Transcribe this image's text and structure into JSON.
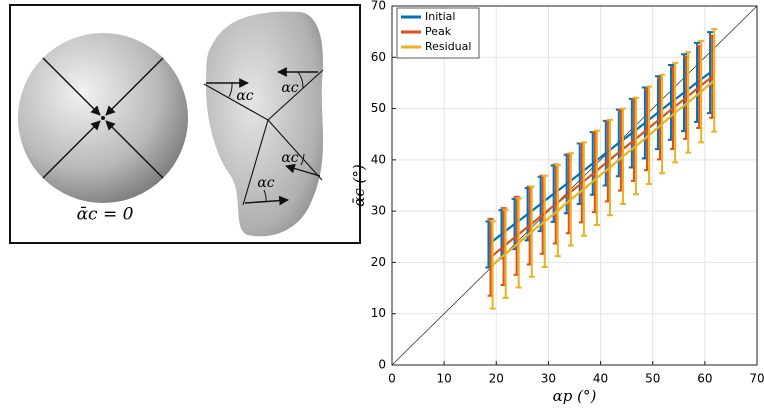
{
  "diagram": {
    "sphere_label": "ᾱc = 0",
    "angle_labels": [
      "αc",
      "αc",
      "αc",
      "αc"
    ]
  },
  "chart_data": {
    "type": "errorbar-line",
    "xlabel": "αp (°)",
    "ylabel": "ᾱc (°)",
    "xlim": [
      0,
      70
    ],
    "ylim": [
      0,
      70
    ],
    "xticks": [
      0,
      10,
      20,
      30,
      40,
      50,
      60,
      70
    ],
    "yticks": [
      0,
      10,
      20,
      30,
      40,
      50,
      60,
      70
    ],
    "grid": true,
    "legend": "upper-left",
    "series": [
      {
        "name": "Initial",
        "color": "#0072bd",
        "x": [
          18.5,
          21,
          23.5,
          26,
          28.5,
          31,
          33.5,
          36,
          38.5,
          41,
          43.5,
          46,
          48.5,
          51,
          53.5,
          56,
          58.5,
          61
        ],
        "values": [
          23.5,
          25.5,
          27.5,
          29.4,
          31.4,
          33.4,
          35.3,
          37.3,
          39.3,
          41.3,
          43.3,
          45.2,
          47.2,
          49.2,
          51.2,
          53.1,
          55.1,
          57.0
        ],
        "errors": [
          4.5,
          4.7,
          4.9,
          5.1,
          5.3,
          5.5,
          5.7,
          5.9,
          6.1,
          6.3,
          6.5,
          6.7,
          6.9,
          7.1,
          7.3,
          7.5,
          7.7,
          7.9
        ]
      },
      {
        "name": "Peak",
        "color": "#d95319",
        "x": [
          18.9,
          21.4,
          23.9,
          26.4,
          28.9,
          31.4,
          33.9,
          36.4,
          38.9,
          41.4,
          43.9,
          46.4,
          48.9,
          51.4,
          53.9,
          56.4,
          58.9,
          61.4
        ],
        "values": [
          21.0,
          23.1,
          25.2,
          27.2,
          29.3,
          31.4,
          33.4,
          35.5,
          37.6,
          39.7,
          41.8,
          43.8,
          45.9,
          48.0,
          50.1,
          52.1,
          54.2,
          56.2
        ],
        "errors": [
          7.5,
          7.5,
          7.6,
          7.6,
          7.6,
          7.7,
          7.7,
          7.7,
          7.8,
          7.8,
          7.8,
          7.9,
          7.9,
          7.9,
          8.0,
          8.0,
          8.0,
          8.0
        ]
      },
      {
        "name": "Residual",
        "color": "#edb120",
        "x": [
          19.3,
          21.8,
          24.3,
          26.8,
          29.3,
          31.8,
          34.3,
          36.8,
          39.3,
          41.8,
          44.3,
          46.8,
          49.3,
          51.8,
          54.3,
          56.8,
          59.3,
          61.8
        ],
        "values": [
          19.5,
          21.7,
          23.8,
          26.0,
          28.0,
          30.1,
          32.3,
          34.3,
          36.5,
          38.5,
          40.7,
          42.7,
          44.8,
          47.0,
          49.2,
          51.2,
          53.3,
          55.5
        ],
        "errors": [
          8.5,
          8.6,
          8.7,
          8.8,
          8.9,
          8.9,
          9.0,
          9.1,
          9.2,
          9.3,
          9.3,
          9.4,
          9.5,
          9.6,
          9.7,
          9.8,
          9.9,
          10.0
        ]
      }
    ]
  }
}
